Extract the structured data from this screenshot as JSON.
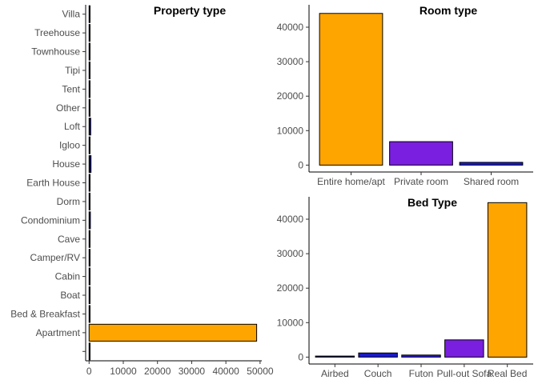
{
  "chart_data": [
    {
      "type": "bar",
      "orientation": "horizontal",
      "title": "Property type",
      "xlabel": "",
      "ylabel": "",
      "categories": [
        "",
        "Apartment",
        "Bed & Breakfast",
        "Boat",
        "Cabin",
        "Camper/RV",
        "Cave",
        "Condominium",
        "Dorm",
        "Earth House",
        "House",
        "Igloo",
        "Loft",
        "Other",
        "Tent",
        "Tipi",
        "Townhouse",
        "Treehouse",
        "Villa"
      ],
      "values": [
        20,
        49000,
        250,
        50,
        30,
        30,
        10,
        380,
        40,
        10,
        560,
        10,
        480,
        50,
        10,
        10,
        60,
        10,
        10
      ],
      "colors": [
        "#0a0a6e",
        "#ffa500",
        "#0a0a6e",
        "#0a0a6e",
        "#0a0a6e",
        "#0a0a6e",
        "#0a0a6e",
        "#0a0a6e",
        "#0a0a6e",
        "#0a0a6e",
        "#0a0a6e",
        "#0a0a6e",
        "#0a0a6e",
        "#0a0a6e",
        "#0a0a6e",
        "#0a0a6e",
        "#0a0a6e",
        "#0a0a6e",
        "#0a0a6e"
      ],
      "xlim": [
        -1000,
        50500
      ],
      "xticks": [
        0,
        10000,
        20000,
        30000,
        40000,
        50000
      ],
      "xtick_labels": [
        "0",
        "10000",
        "20000",
        "30000",
        "40000",
        "50000"
      ],
      "grid": false
    },
    {
      "type": "bar",
      "title": "Room type",
      "xlabel": "",
      "ylabel": "",
      "categories": [
        "Entire home/apt",
        "Private room",
        "Shared room"
      ],
      "values": [
        44000,
        6800,
        800
      ],
      "colors": [
        "#ffa500",
        "#7a1fe0",
        "#1a1acc"
      ],
      "ylim": [
        -2000,
        46500
      ],
      "yticks": [
        0,
        10000,
        20000,
        30000,
        40000
      ],
      "ytick_labels": [
        "0",
        "10000",
        "20000",
        "30000",
        "40000"
      ],
      "grid": false
    },
    {
      "type": "bar",
      "title": "Bed Type",
      "xlabel": "",
      "ylabel": "",
      "categories": [
        "Airbed",
        "Couch",
        "Futon",
        "Pull-out Sofa",
        "Real Bed"
      ],
      "values": [
        300,
        1200,
        600,
        5000,
        44800
      ],
      "colors": [
        "#0a0a6e",
        "#1a1acc",
        "#2a1ad8",
        "#7a1fe0",
        "#ffa500"
      ],
      "ylim": [
        -2000,
        46500
      ],
      "yticks": [
        0,
        10000,
        20000,
        30000,
        40000
      ],
      "ytick_labels": [
        "0",
        "10000",
        "20000",
        "30000",
        "40000"
      ],
      "grid": false
    }
  ]
}
